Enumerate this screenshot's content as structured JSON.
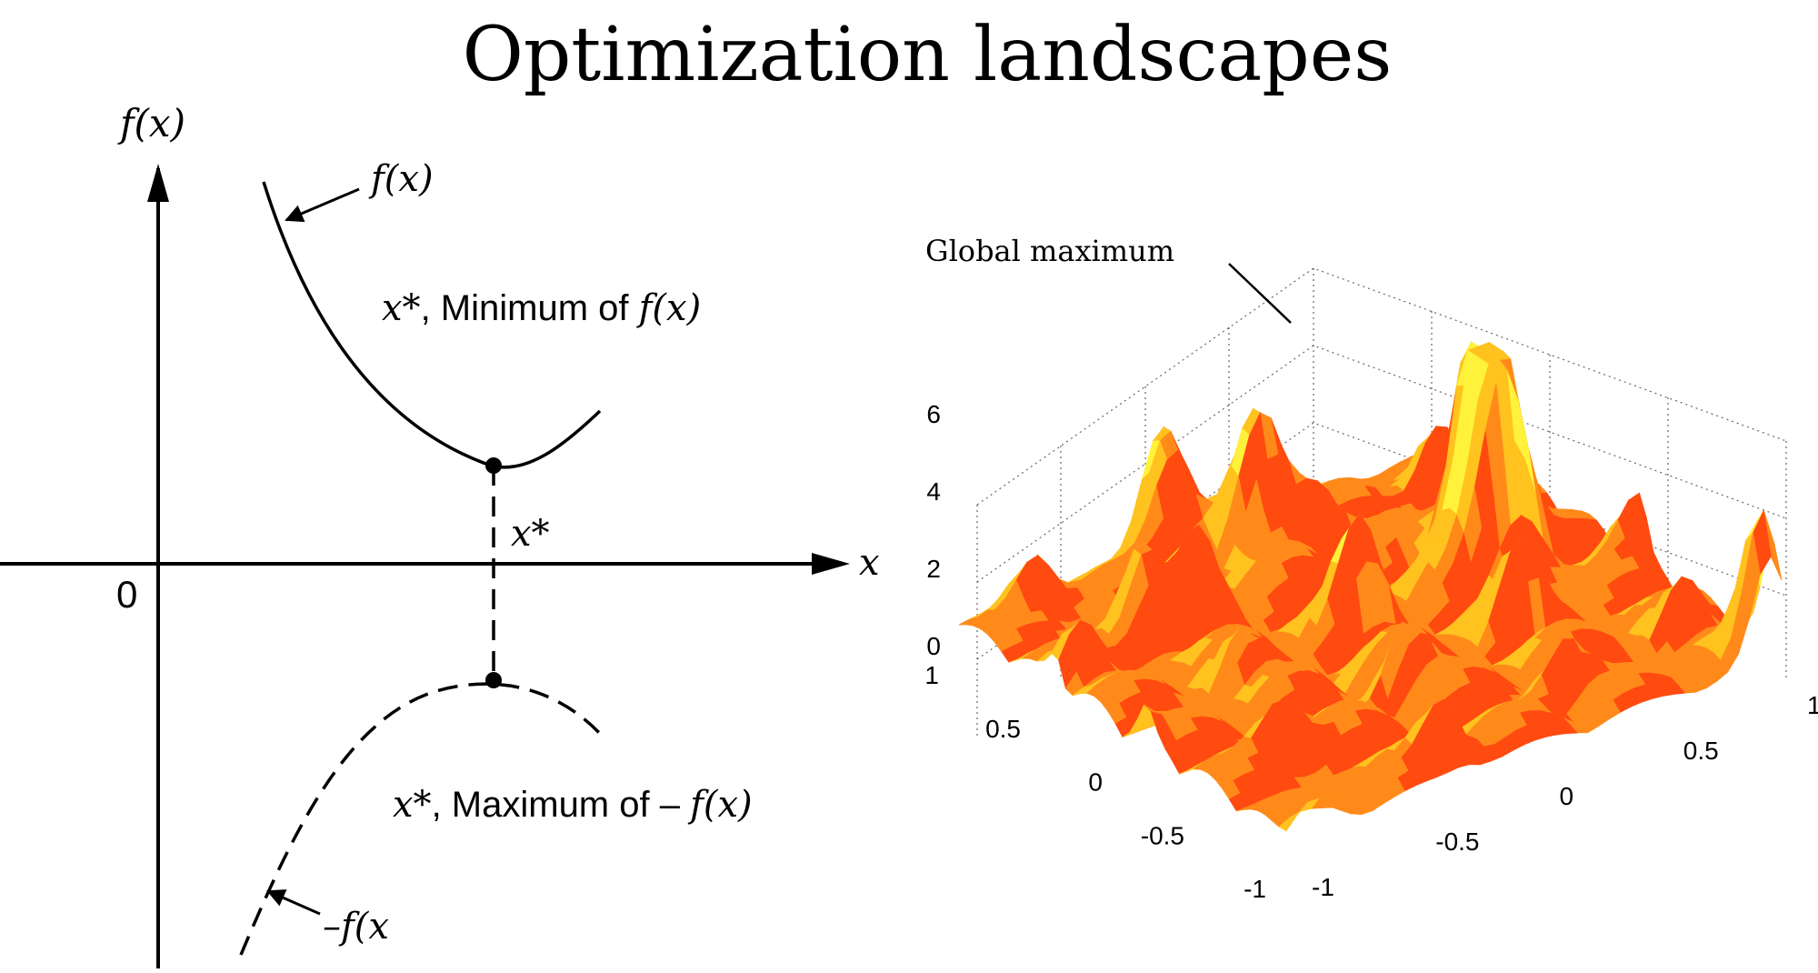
{
  "title": "Optimization landscapes",
  "left_diagram": {
    "y_axis_label": "f(x)",
    "x_axis_label": "x",
    "origin_label": "0",
    "curve_label_top": "f(x)",
    "min_label_var": "x*",
    "min_label_text": ", Minimum of ",
    "min_label_func": "f(x)",
    "xstar_label": "x*",
    "max_label_var": "x*",
    "max_label_text": ", Maximum of – ",
    "max_label_func": "f(x)",
    "curve_label_bottom": "–f(x"
  },
  "surface_plot": {
    "annotation": "Global maximum",
    "z_ticks": [
      "0",
      "2",
      "4",
      "6"
    ],
    "left_axis_ticks": [
      "1",
      "0.5",
      "0",
      "-0.5",
      "-1"
    ],
    "right_axis_ticks": [
      "-1",
      "-0.5",
      "0",
      "0.5",
      "1"
    ],
    "colormap": [
      "#e81e0a",
      "#ff4a10",
      "#ff8a1a",
      "#ffc21e",
      "#fff23a"
    ]
  }
}
